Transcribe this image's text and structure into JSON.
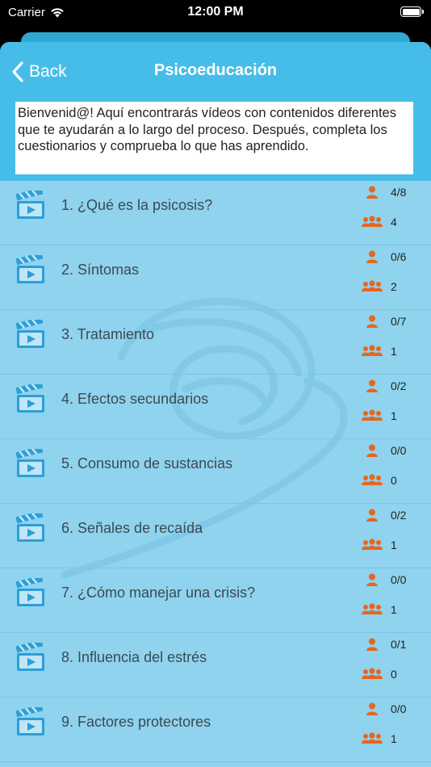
{
  "status": {
    "carrier": "Carrier",
    "time": "12:00 PM"
  },
  "nav": {
    "back_label": "Back",
    "title": "Psicoeducación"
  },
  "intro": "Bienvenid@! Aquí encontrarás vídeos con contenidos diferentes que te ayudarán a lo largo del proceso. Después, completa los cuestionarios y comprueba lo que has aprendido.",
  "colors": {
    "nav": "#46bde8",
    "list_bg": "#8fd3ee",
    "icon": "#2b9fd8",
    "stat_icon": "#e8651e"
  },
  "icons": {
    "row": "video-clapper-icon",
    "personal": "person-icon",
    "group": "group-icon"
  },
  "items": [
    {
      "title": "1. ¿Qué es la psicosis?",
      "personal": "4/8",
      "group": "4"
    },
    {
      "title": "2. Síntomas",
      "personal": "0/6",
      "group": "2"
    },
    {
      "title": "3. Tratamiento",
      "personal": "0/7",
      "group": "1"
    },
    {
      "title": "4. Efectos secundarios",
      "personal": "0/2",
      "group": "1"
    },
    {
      "title": "5. Consumo de sustancias",
      "personal": "0/0",
      "group": "0"
    },
    {
      "title": "6. Señales de recaída",
      "personal": "0/2",
      "group": "1"
    },
    {
      "title": "7. ¿Cómo manejar una crisis?",
      "personal": "0/0",
      "group": "1"
    },
    {
      "title": "8. Influencia del estrés",
      "personal": "0/1",
      "group": "0"
    },
    {
      "title": "9. Factores protectores",
      "personal": "0/0",
      "group": "1"
    }
  ]
}
